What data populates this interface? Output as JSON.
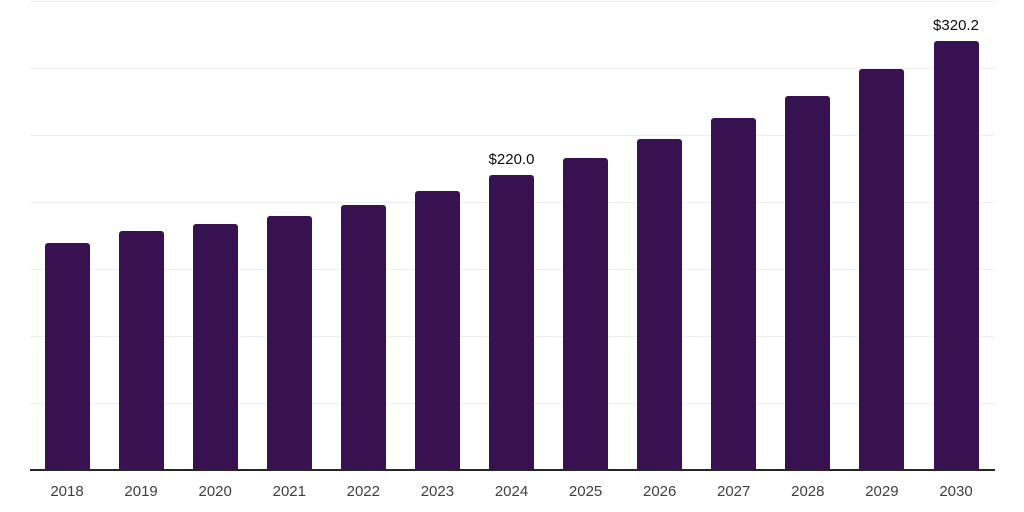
{
  "chart_data": {
    "type": "bar",
    "title": "",
    "xlabel": "",
    "ylabel": "",
    "categories": [
      "2018",
      "2019",
      "2020",
      "2021",
      "2022",
      "2023",
      "2024",
      "2025",
      "2026",
      "2027",
      "2028",
      "2029",
      "2030"
    ],
    "values": [
      169.4,
      178.4,
      183.6,
      189.8,
      197.8,
      208.1,
      220.0,
      232.7,
      246.9,
      262.6,
      279.4,
      299.5,
      320.2
    ],
    "annotations": [
      {
        "category": "2024",
        "text": "$220.0"
      },
      {
        "category": "2030",
        "text": "$320.2"
      }
    ],
    "ylim": [
      0,
      350
    ],
    "gridline_step": 50,
    "grid": "horizontal",
    "y_axis_tick_labels_visible": false,
    "legend": "none"
  },
  "style": {
    "bar_color": "#371150",
    "gridline_color": "#efeff1",
    "axis_line_color": "#262626",
    "tick_label_color": "#3f3f3f",
    "data_label_color": "#0d0d0d",
    "background_color": "#ffffff"
  }
}
